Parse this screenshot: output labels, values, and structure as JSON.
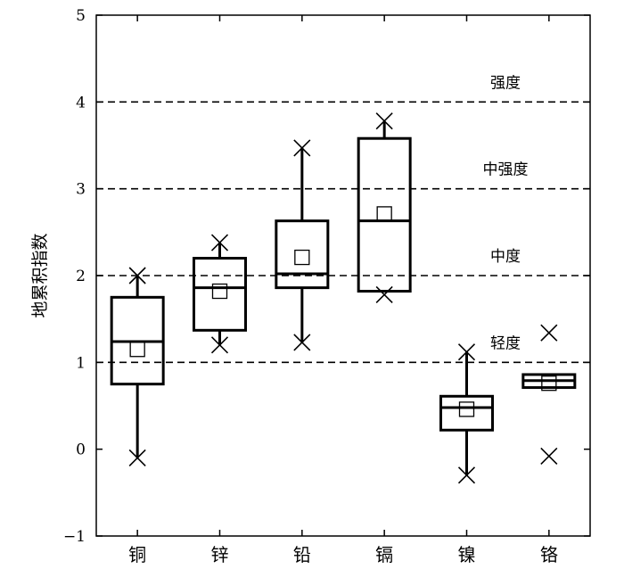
{
  "chart_data": {
    "type": "box",
    "ylabel": "地累积指数",
    "ylim": [
      -1,
      5
    ],
    "yticks": [
      -1,
      0,
      1,
      2,
      3,
      4,
      5
    ],
    "ytick_labels": [
      "−1",
      "0",
      "1",
      "2",
      "3",
      "4",
      "5"
    ],
    "grid": false,
    "categories": [
      "铜",
      "锌",
      "铅",
      "镉",
      "镍",
      "铬"
    ],
    "boxes": [
      {
        "category": "铜",
        "whisker_low": -0.1,
        "q1": 0.75,
        "median": 1.24,
        "q3": 1.75,
        "whisker_high": 2.0,
        "mean": 1.15,
        "min": -0.1,
        "max": 2.0
      },
      {
        "category": "锌",
        "whisker_low": 1.2,
        "q1": 1.37,
        "median": 1.86,
        "q3": 2.2,
        "whisker_high": 2.38,
        "mean": 1.82,
        "min": 1.2,
        "max": 2.38
      },
      {
        "category": "铅",
        "whisker_low": 1.23,
        "q1": 1.86,
        "median": 2.02,
        "q3": 2.63,
        "whisker_high": 3.47,
        "mean": 2.21,
        "min": 1.23,
        "max": 3.47
      },
      {
        "category": "镉",
        "whisker_low": 1.82,
        "q1": 1.82,
        "median": 2.63,
        "q3": 3.58,
        "whisker_high": 3.78,
        "mean": 2.71,
        "min": 1.78,
        "max": 3.78
      },
      {
        "category": "镍",
        "whisker_low": -0.3,
        "q1": 0.22,
        "median": 0.48,
        "q3": 0.61,
        "whisker_high": 1.12,
        "mean": 0.46,
        "min": -0.3,
        "max": 1.12
      },
      {
        "category": "铬",
        "whisker_low": 0.71,
        "q1": 0.71,
        "median": 0.79,
        "q3": 0.86,
        "whisker_high": 0.86,
        "mean": 0.76,
        "min": -0.08,
        "max": 1.34
      }
    ],
    "reference_lines": [
      {
        "y": 1,
        "label": "轻度"
      },
      {
        "y": 2,
        "label": "中度"
      },
      {
        "y": 3,
        "label": "中强度"
      },
      {
        "y": 4,
        "label": "强度"
      }
    ]
  }
}
